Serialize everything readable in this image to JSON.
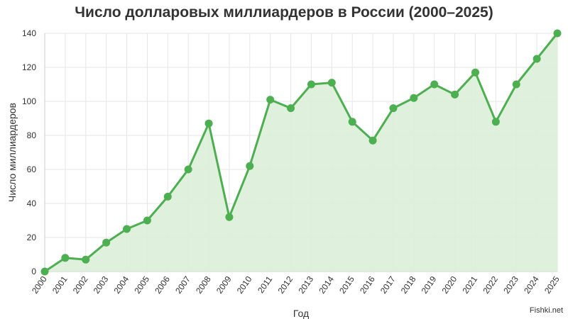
{
  "chart_data": {
    "type": "area",
    "title": "Число долларовых миллиардеров в России (2000–2025)",
    "xlabel": "Год",
    "ylabel": "Число миллиардеров",
    "x": [
      "2000",
      "2001",
      "2002",
      "2003",
      "2004",
      "2005",
      "2006",
      "2007",
      "2008",
      "2009",
      "2010",
      "2011",
      "2012",
      "2013",
      "2014",
      "2015",
      "2016",
      "2017",
      "2018",
      "2019",
      "2020",
      "2021",
      "2022",
      "2023",
      "2024",
      "2025"
    ],
    "values": [
      0,
      8,
      7,
      17,
      25,
      30,
      44,
      60,
      87,
      32,
      62,
      101,
      96,
      110,
      111,
      88,
      77,
      96,
      102,
      110,
      104,
      117,
      88,
      110,
      125,
      140
    ],
    "ylim": [
      0,
      140
    ],
    "yticks": [
      0,
      20,
      40,
      60,
      80,
      100,
      120,
      140
    ],
    "grid": true,
    "colors": {
      "line": "#4caf50",
      "fill": "#dcefd9",
      "grid": "#e6e6e6"
    }
  },
  "watermark": "Fishki.net"
}
